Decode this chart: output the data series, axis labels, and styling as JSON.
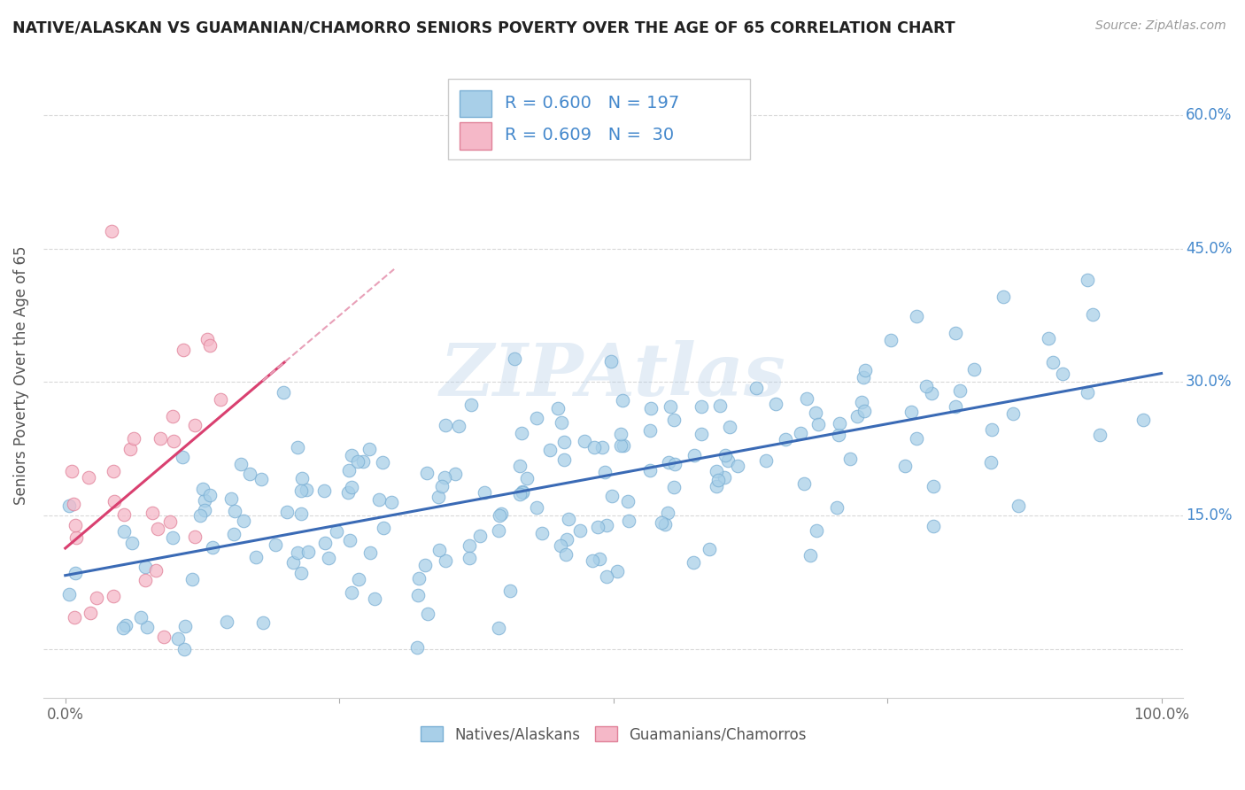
{
  "title": "NATIVE/ALASKAN VS GUAMANIAN/CHAMORRO SENIORS POVERTY OVER THE AGE OF 65 CORRELATION CHART",
  "source": "Source: ZipAtlas.com",
  "ylabel": "Seniors Poverty Over the Age of 65",
  "xlim": [
    -0.02,
    1.02
  ],
  "ylim": [
    -0.055,
    0.67
  ],
  "xticks": [
    0.0,
    0.25,
    0.5,
    0.75,
    1.0
  ],
  "xtick_labels": [
    "0.0%",
    "",
    "",
    "",
    "100.0%"
  ],
  "ytick_positions": [
    0.0,
    0.15,
    0.3,
    0.45,
    0.6
  ],
  "ytick_labels": [
    "",
    "15.0%",
    "30.0%",
    "45.0%",
    "60.0%"
  ],
  "blue_color": "#a8cfe8",
  "blue_edge": "#7aafd4",
  "pink_color": "#f5b8c8",
  "pink_edge": "#e08098",
  "blue_line_color": "#3a6ab5",
  "pink_line_color": "#d94070",
  "pink_line_dashed_color": "#e8a0b8",
  "grid_color": "#d8d8d8",
  "background_color": "#ffffff",
  "R_blue": 0.6,
  "N_blue": 197,
  "R_pink": 0.609,
  "N_pink": 30,
  "watermark": "ZIPAtlas",
  "legend_label_blue": "Natives/Alaskans",
  "legend_label_pink": "Guamanians/Chamorros",
  "blue_seed": 42,
  "pink_seed": 17
}
